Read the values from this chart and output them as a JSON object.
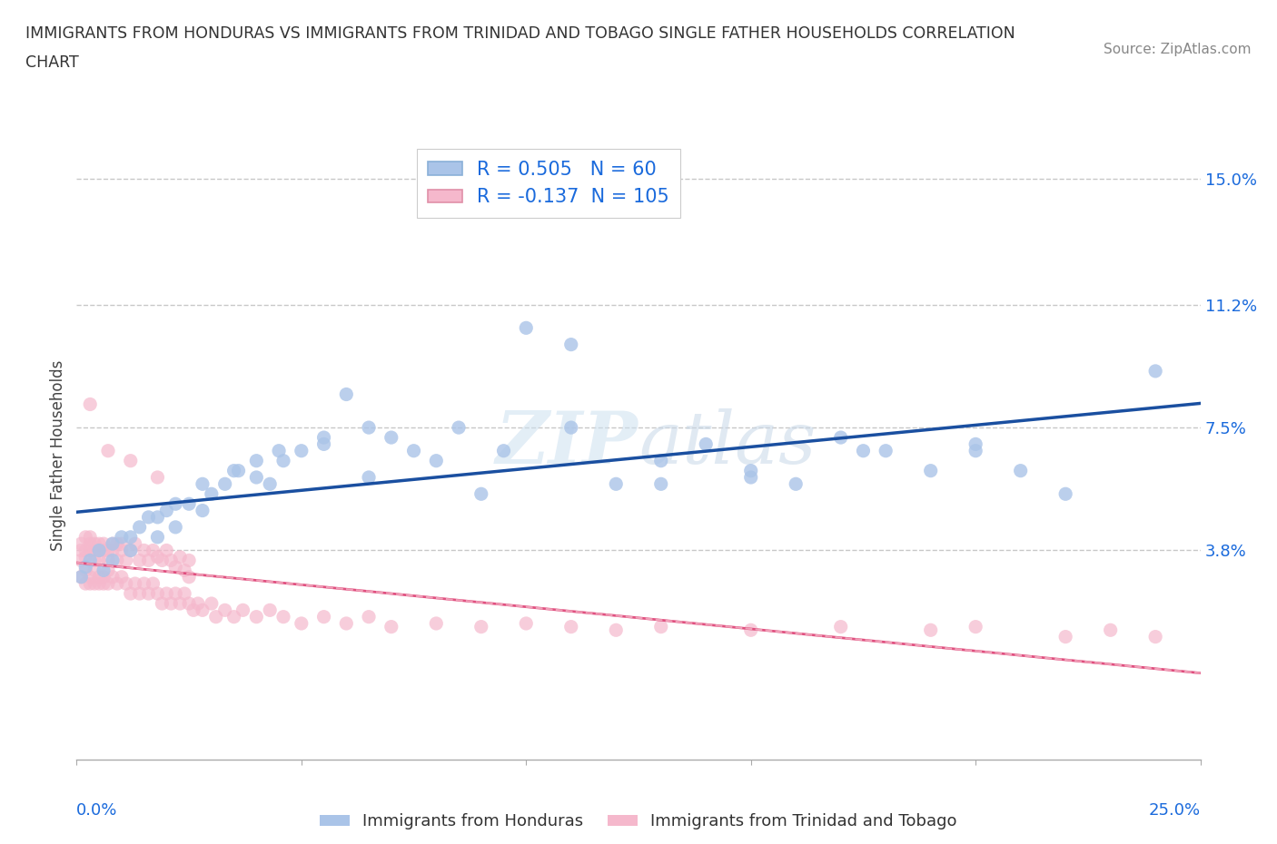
{
  "title_line1": "IMMIGRANTS FROM HONDURAS VS IMMIGRANTS FROM TRINIDAD AND TOBAGO SINGLE FATHER HOUSEHOLDS CORRELATION",
  "title_line2": "CHART",
  "source": "Source: ZipAtlas.com",
  "ylabel": "Single Father Households",
  "xlim": [
    0.0,
    0.25
  ],
  "ylim": [
    -0.025,
    0.158
  ],
  "xticks": [
    0.0,
    0.05,
    0.1,
    0.15,
    0.2,
    0.25
  ],
  "xticklabels": [
    "0.0%",
    "",
    "",
    "",
    "",
    "25.0%"
  ],
  "yticks": [
    0.038,
    0.075,
    0.112,
    0.15
  ],
  "yticklabels": [
    "3.8%",
    "7.5%",
    "11.2%",
    "15.0%"
  ],
  "background_color": "#ffffff",
  "grid_color": "#c8c8c8",
  "series1_color": "#aac4e8",
  "series1_edge": "#aac4e8",
  "series2_color": "#f5b8cc",
  "series2_edge": "#f5b8cc",
  "trend1_color": "#1a4fa0",
  "trend2_color": "#e05080",
  "trend2_dash_color": "#f0a0b8",
  "R1": 0.505,
  "N1": 60,
  "R2": -0.137,
  "N2": 105,
  "legend1_label": "Immigrants from Honduras",
  "legend2_label": "Immigrants from Trinidad and Tobago",
  "watermark": "ZIPatlas",
  "series1_x": [
    0.001,
    0.002,
    0.003,
    0.005,
    0.006,
    0.008,
    0.01,
    0.012,
    0.014,
    0.016,
    0.018,
    0.02,
    0.022,
    0.025,
    0.028,
    0.03,
    0.033,
    0.036,
    0.04,
    0.043,
    0.046,
    0.05,
    0.055,
    0.06,
    0.065,
    0.07,
    0.08,
    0.09,
    0.1,
    0.11,
    0.12,
    0.13,
    0.14,
    0.15,
    0.16,
    0.17,
    0.18,
    0.19,
    0.2,
    0.21,
    0.008,
    0.012,
    0.018,
    0.022,
    0.028,
    0.035,
    0.04,
    0.045,
    0.055,
    0.065,
    0.075,
    0.085,
    0.095,
    0.11,
    0.13,
    0.15,
    0.175,
    0.2,
    0.22,
    0.24
  ],
  "series1_y": [
    0.03,
    0.033,
    0.035,
    0.038,
    0.032,
    0.04,
    0.042,
    0.038,
    0.045,
    0.048,
    0.042,
    0.05,
    0.045,
    0.052,
    0.05,
    0.055,
    0.058,
    0.062,
    0.06,
    0.058,
    0.065,
    0.068,
    0.07,
    0.085,
    0.075,
    0.072,
    0.065,
    0.055,
    0.105,
    0.075,
    0.058,
    0.065,
    0.07,
    0.06,
    0.058,
    0.072,
    0.068,
    0.062,
    0.07,
    0.062,
    0.035,
    0.042,
    0.048,
    0.052,
    0.058,
    0.062,
    0.065,
    0.068,
    0.072,
    0.06,
    0.068,
    0.075,
    0.068,
    0.1,
    0.058,
    0.062,
    0.068,
    0.068,
    0.055,
    0.092
  ],
  "series2_x": [
    0.001,
    0.001,
    0.001,
    0.002,
    0.002,
    0.002,
    0.003,
    0.003,
    0.003,
    0.004,
    0.004,
    0.004,
    0.005,
    0.005,
    0.005,
    0.006,
    0.006,
    0.007,
    0.007,
    0.008,
    0.008,
    0.009,
    0.009,
    0.01,
    0.01,
    0.011,
    0.012,
    0.013,
    0.014,
    0.015,
    0.016,
    0.017,
    0.018,
    0.019,
    0.02,
    0.021,
    0.022,
    0.023,
    0.024,
    0.025,
    0.001,
    0.002,
    0.002,
    0.003,
    0.003,
    0.004,
    0.004,
    0.005,
    0.005,
    0.006,
    0.006,
    0.007,
    0.007,
    0.008,
    0.009,
    0.01,
    0.011,
    0.012,
    0.013,
    0.014,
    0.015,
    0.016,
    0.017,
    0.018,
    0.019,
    0.02,
    0.021,
    0.022,
    0.023,
    0.024,
    0.025,
    0.026,
    0.027,
    0.028,
    0.03,
    0.031,
    0.033,
    0.035,
    0.037,
    0.04,
    0.043,
    0.046,
    0.05,
    0.055,
    0.06,
    0.065,
    0.07,
    0.08,
    0.09,
    0.1,
    0.11,
    0.12,
    0.13,
    0.15,
    0.17,
    0.19,
    0.2,
    0.22,
    0.23,
    0.24,
    0.003,
    0.007,
    0.012,
    0.018,
    0.025
  ],
  "series2_y": [
    0.038,
    0.04,
    0.035,
    0.038,
    0.042,
    0.036,
    0.04,
    0.038,
    0.042,
    0.038,
    0.04,
    0.035,
    0.04,
    0.038,
    0.035,
    0.038,
    0.04,
    0.038,
    0.035,
    0.04,
    0.038,
    0.04,
    0.035,
    0.038,
    0.04,
    0.035,
    0.038,
    0.04,
    0.035,
    0.038,
    0.035,
    0.038,
    0.036,
    0.035,
    0.038,
    0.035,
    0.033,
    0.036,
    0.032,
    0.035,
    0.03,
    0.028,
    0.032,
    0.028,
    0.03,
    0.028,
    0.032,
    0.03,
    0.028,
    0.03,
    0.028,
    0.032,
    0.028,
    0.03,
    0.028,
    0.03,
    0.028,
    0.025,
    0.028,
    0.025,
    0.028,
    0.025,
    0.028,
    0.025,
    0.022,
    0.025,
    0.022,
    0.025,
    0.022,
    0.025,
    0.022,
    0.02,
    0.022,
    0.02,
    0.022,
    0.018,
    0.02,
    0.018,
    0.02,
    0.018,
    0.02,
    0.018,
    0.016,
    0.018,
    0.016,
    0.018,
    0.015,
    0.016,
    0.015,
    0.016,
    0.015,
    0.014,
    0.015,
    0.014,
    0.015,
    0.014,
    0.015,
    0.012,
    0.014,
    0.012,
    0.082,
    0.068,
    0.065,
    0.06,
    0.03
  ]
}
